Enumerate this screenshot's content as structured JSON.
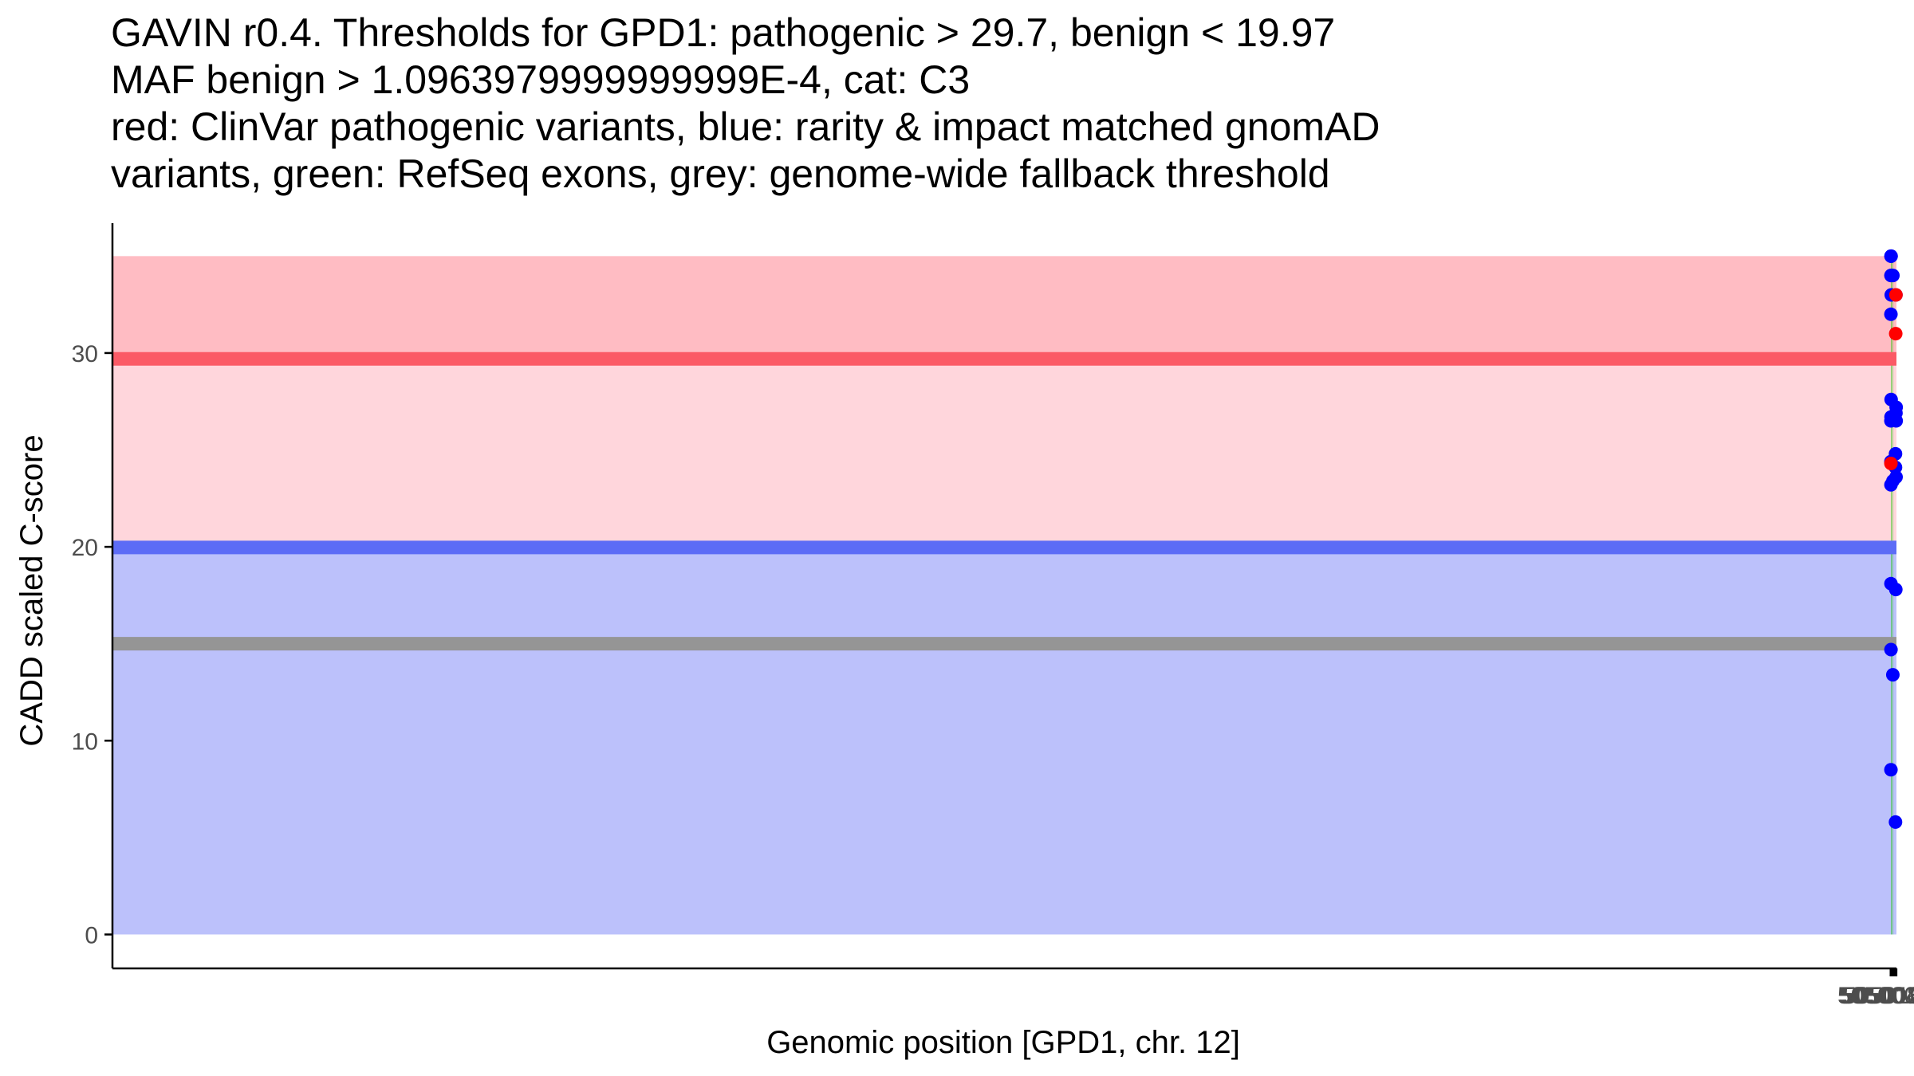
{
  "chart_data": {
    "type": "scatter",
    "title_lines": [
      "GAVIN r0.4. Thresholds for GPD1: pathogenic > 29.7, benign < 19.97",
      "MAF benign > 1.0963979999999999E-4, cat: C3",
      "red: ClinVar pathogenic variants, blue: rarity & impact matched gnomAD",
      "variants, green: RefSeq exons, grey: genome-wide fallback threshold"
    ],
    "xlabel": "Genomic position [GPD1, chr. 12]",
    "ylabel": "CADD scaled C-score",
    "xlim": [
      49999996,
      50501627
    ],
    "ylim": [
      -1.75,
      36.7
    ],
    "x_ticks": [
      50500000,
      50500400,
      50500800,
      50501200,
      50501600
    ],
    "x_tick_labels": [
      "50500000",
      "50500400",
      "50500800",
      "50501200",
      "50501600"
    ],
    "y_ticks": [
      0,
      10,
      20,
      30
    ],
    "y_tick_labels": [
      "0",
      "10",
      "20",
      "30"
    ],
    "thresholds": {
      "pathogenic": 29.7,
      "benign": 19.97,
      "fallback": 15
    },
    "band_top": 35,
    "exons": [
      {
        "start": 50500073,
        "end": 50500210
      },
      {
        "start": 50500588,
        "end": 50500700
      }
    ],
    "series": [
      {
        "name": "gnomAD",
        "color": "#0000ff",
        "points": [
          {
            "x": 50500070,
            "y": 26.5
          },
          {
            "x": 50500070,
            "y": 24.4
          },
          {
            "x": 50500073,
            "y": 32
          },
          {
            "x": 50500076,
            "y": 8.5
          },
          {
            "x": 50500080,
            "y": 23.2
          },
          {
            "x": 50500082,
            "y": 18.1
          },
          {
            "x": 50500086,
            "y": 34
          },
          {
            "x": 50500091,
            "y": 14.7
          },
          {
            "x": 50500100,
            "y": 35
          },
          {
            "x": 50500103,
            "y": 26.7
          },
          {
            "x": 50500115,
            "y": 35
          },
          {
            "x": 50500130,
            "y": 34
          },
          {
            "x": 50500132,
            "y": 27.6
          },
          {
            "x": 50500162,
            "y": 33
          },
          {
            "x": 50500610,
            "y": 13.4
          },
          {
            "x": 50500627,
            "y": 34
          },
          {
            "x": 50500632,
            "y": 23.4
          },
          {
            "x": 50500703,
            "y": 26.6
          },
          {
            "x": 50501358,
            "y": 24.1
          },
          {
            "x": 50501360,
            "y": 24.8
          },
          {
            "x": 50501360,
            "y": 5.8
          },
          {
            "x": 50501443,
            "y": 17.8
          },
          {
            "x": 50501484,
            "y": 33
          },
          {
            "x": 50501488,
            "y": 26.9
          },
          {
            "x": 50501518,
            "y": 23.6
          },
          {
            "x": 50501546,
            "y": 27.2
          },
          {
            "x": 50501550,
            "y": 26.5
          }
        ]
      },
      {
        "name": "ClinVar pathogenic",
        "color": "#ff0000",
        "points": [
          {
            "x": 50500071,
            "y": 24.3
          },
          {
            "x": 50501421,
            "y": 31
          },
          {
            "x": 50501487,
            "y": 33
          }
        ]
      }
    ],
    "colors": {
      "pathogenic_band": "#ffbcc3",
      "uncertain_high_band": "#ffd6dc",
      "benign_band": "#bcc1fb",
      "pathogenic_line": "#fb5a66",
      "benign_line": "#5c6cf6",
      "fallback_line": "#959595",
      "exon": "#19c802",
      "axis": "#000000"
    }
  }
}
